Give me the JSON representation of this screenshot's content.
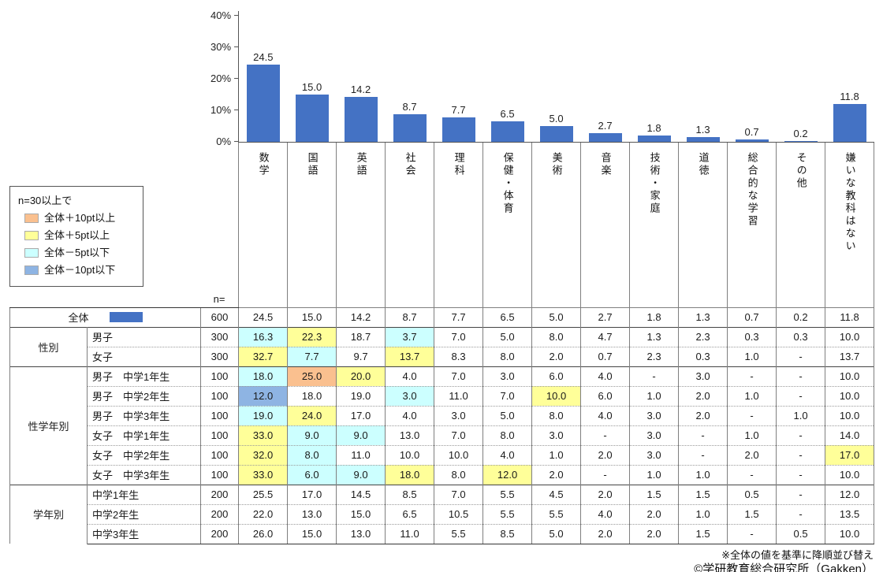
{
  "chart_data": {
    "type": "bar",
    "title": "",
    "unit": "%",
    "categories": [
      "数学",
      "国語",
      "英語",
      "社会",
      "理科",
      "保健・体育",
      "美術",
      "音楽",
      "技術・家庭",
      "道徳",
      "総合的な学習",
      "その他",
      "嫌いな教科はない"
    ],
    "values": [
      24.5,
      15.0,
      14.2,
      8.7,
      7.7,
      6.5,
      5.0,
      2.7,
      1.8,
      1.3,
      0.7,
      0.2,
      11.8
    ],
    "value_labels": [
      "24.5",
      "15.0",
      "14.2",
      "8.7",
      "7.7",
      "6.5",
      "5.0",
      "2.7",
      "1.8",
      "1.3",
      "0.7",
      "0.2",
      "11.8"
    ],
    "y_ticks": [
      {
        "label": "40%",
        "value": 40
      },
      {
        "label": "30%",
        "value": 30
      },
      {
        "label": "20%",
        "value": 20
      },
      {
        "label": "10%",
        "value": 10
      },
      {
        "label": "0%",
        "value": 0
      }
    ],
    "ylim": [
      0,
      40
    ],
    "grid": false,
    "bar_color": "#4472C4"
  },
  "highlight_colors": {
    "plus10": "#FAC08F",
    "plus5": "#FFFF99",
    "minus5": "#CCFFFF",
    "minus10": "#8EB4E3"
  },
  "legend": {
    "title": "n=30以上で",
    "items": [
      {
        "key": "plus10",
        "label": "全体＋10pt以上",
        "color": "#FAC08F"
      },
      {
        "key": "plus5",
        "label": "全体＋5pt以上",
        "color": "#FFFF99"
      },
      {
        "key": "minus5",
        "label": "全体－5pt以下",
        "color": "#CCFFFF"
      },
      {
        "key": "minus10",
        "label": "全体－10pt以下",
        "color": "#8EB4E3"
      }
    ]
  },
  "table": {
    "n_header": "n=",
    "groups": [
      {
        "name": "",
        "rows": [
          {
            "label": "全体",
            "total": true,
            "n": "600",
            "values": [
              "24.5",
              "15.0",
              "14.2",
              "8.7",
              "7.7",
              "6.5",
              "5.0",
              "2.7",
              "1.8",
              "1.3",
              "0.7",
              "0.2",
              "11.8"
            ],
            "hl": {}
          }
        ]
      },
      {
        "name": "性別",
        "rows": [
          {
            "label": "男子",
            "n": "300",
            "values": [
              "16.3",
              "22.3",
              "18.7",
              "3.7",
              "7.0",
              "5.0",
              "8.0",
              "4.7",
              "1.3",
              "2.3",
              "0.3",
              "0.3",
              "10.0"
            ],
            "hl": {
              "0": "minus5",
              "1": "plus5",
              "3": "minus5"
            }
          },
          {
            "label": "女子",
            "n": "300",
            "values": [
              "32.7",
              "7.7",
              "9.7",
              "13.7",
              "8.3",
              "8.0",
              "2.0",
              "0.7",
              "2.3",
              "0.3",
              "1.0",
              "-",
              "13.7"
            ],
            "hl": {
              "0": "plus5",
              "1": "minus5",
              "3": "plus5"
            }
          }
        ]
      },
      {
        "name": "性学年別",
        "rows": [
          {
            "label": "男子　中学1年生",
            "n": "100",
            "values": [
              "18.0",
              "25.0",
              "20.0",
              "4.0",
              "7.0",
              "3.0",
              "6.0",
              "4.0",
              "-",
              "3.0",
              "-",
              "-",
              "10.0"
            ],
            "hl": {
              "0": "minus5",
              "1": "plus10",
              "2": "plus5"
            }
          },
          {
            "label": "男子　中学2年生",
            "n": "100",
            "values": [
              "12.0",
              "18.0",
              "19.0",
              "3.0",
              "11.0",
              "7.0",
              "10.0",
              "6.0",
              "1.0",
              "2.0",
              "1.0",
              "-",
              "10.0"
            ],
            "hl": {
              "0": "minus10",
              "3": "minus5",
              "6": "plus5"
            }
          },
          {
            "label": "男子　中学3年生",
            "n": "100",
            "values": [
              "19.0",
              "24.0",
              "17.0",
              "4.0",
              "3.0",
              "5.0",
              "8.0",
              "4.0",
              "3.0",
              "2.0",
              "-",
              "1.0",
              "10.0"
            ],
            "hl": {
              "0": "minus5",
              "1": "plus5"
            }
          },
          {
            "label": "女子　中学1年生",
            "n": "100",
            "values": [
              "33.0",
              "9.0",
              "9.0",
              "13.0",
              "7.0",
              "8.0",
              "3.0",
              "-",
              "3.0",
              "-",
              "1.0",
              "-",
              "14.0"
            ],
            "hl": {
              "0": "plus5",
              "1": "minus5",
              "2": "minus5"
            }
          },
          {
            "label": "女子　中学2年生",
            "n": "100",
            "values": [
              "32.0",
              "8.0",
              "11.0",
              "10.0",
              "10.0",
              "4.0",
              "1.0",
              "2.0",
              "3.0",
              "-",
              "2.0",
              "-",
              "17.0"
            ],
            "hl": {
              "0": "plus5",
              "1": "minus5",
              "12": "plus5"
            }
          },
          {
            "label": "女子　中学3年生",
            "n": "100",
            "values": [
              "33.0",
              "6.0",
              "9.0",
              "18.0",
              "8.0",
              "12.0",
              "2.0",
              "-",
              "1.0",
              "1.0",
              "-",
              "-",
              "10.0"
            ],
            "hl": {
              "0": "plus5",
              "1": "minus5",
              "2": "minus5",
              "3": "plus5",
              "5": "plus5"
            }
          }
        ]
      },
      {
        "name": "学年別",
        "rows": [
          {
            "label": "中学1年生",
            "n": "200",
            "values": [
              "25.5",
              "17.0",
              "14.5",
              "8.5",
              "7.0",
              "5.5",
              "4.5",
              "2.0",
              "1.5",
              "1.5",
              "0.5",
              "-",
              "12.0"
            ],
            "hl": {}
          },
          {
            "label": "中学2年生",
            "n": "200",
            "values": [
              "22.0",
              "13.0",
              "15.0",
              "6.5",
              "10.5",
              "5.5",
              "5.5",
              "4.0",
              "2.0",
              "1.0",
              "1.5",
              "-",
              "13.5"
            ],
            "hl": {}
          },
          {
            "label": "中学3年生",
            "n": "200",
            "values": [
              "26.0",
              "15.0",
              "13.0",
              "11.0",
              "5.5",
              "8.5",
              "5.0",
              "2.0",
              "2.0",
              "1.5",
              "-",
              "0.5",
              "10.0"
            ],
            "hl": {}
          }
        ]
      }
    ]
  },
  "footer": {
    "note": "※全体の値を基準に降順並び替え",
    "copyright": "©学研教育総合研究所（Gakken）"
  }
}
